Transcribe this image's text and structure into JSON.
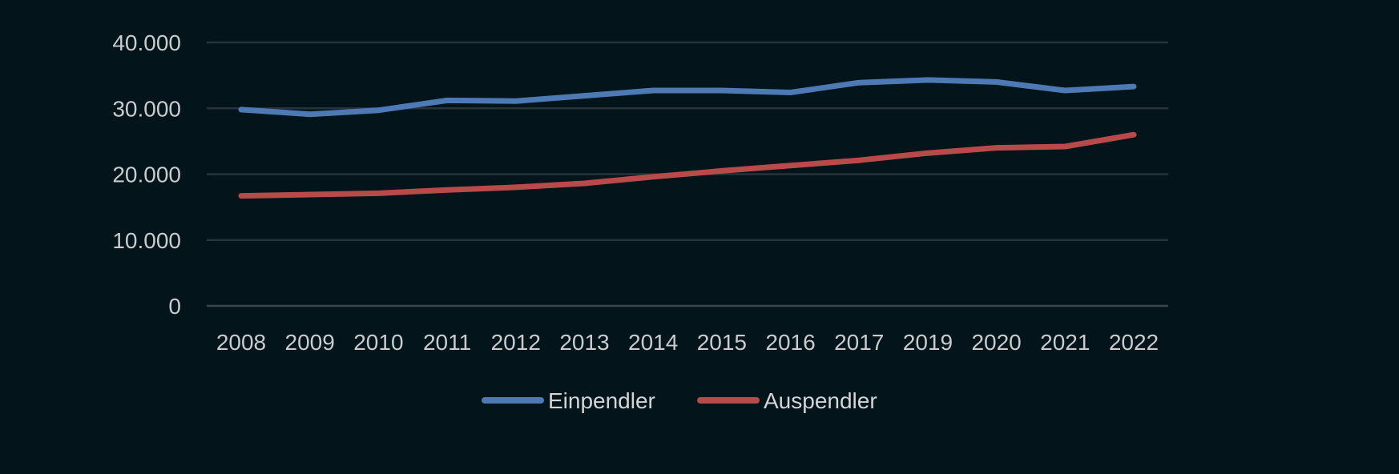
{
  "chart_data": {
    "type": "line",
    "title": "",
    "xlabel": "",
    "ylabel": "",
    "categories": [
      "2008",
      "2009",
      "2010",
      "2011",
      "2012",
      "2013",
      "2014",
      "2015",
      "2016",
      "2017",
      "2019",
      "2020",
      "2021",
      "2022"
    ],
    "y_ticks": [
      "0",
      "10.000",
      "20.000",
      "30.000",
      "40.000"
    ],
    "y_tick_values": [
      0,
      10000,
      20000,
      30000,
      40000
    ],
    "ylim": [
      0,
      40000
    ],
    "grid": true,
    "legend_position": "bottom",
    "series": [
      {
        "name": "Einpendler",
        "color": "#4d7ab5",
        "values": [
          29800,
          29100,
          29700,
          31200,
          31100,
          31900,
          32700,
          32700,
          32400,
          33900,
          34300,
          34000,
          32700,
          33300
        ]
      },
      {
        "name": "Auspendler",
        "color": "#b84a4a",
        "values": [
          16700,
          16900,
          17100,
          17600,
          18000,
          18600,
          19600,
          20500,
          21300,
          22100,
          23200,
          24000,
          24200,
          26000
        ]
      }
    ]
  }
}
